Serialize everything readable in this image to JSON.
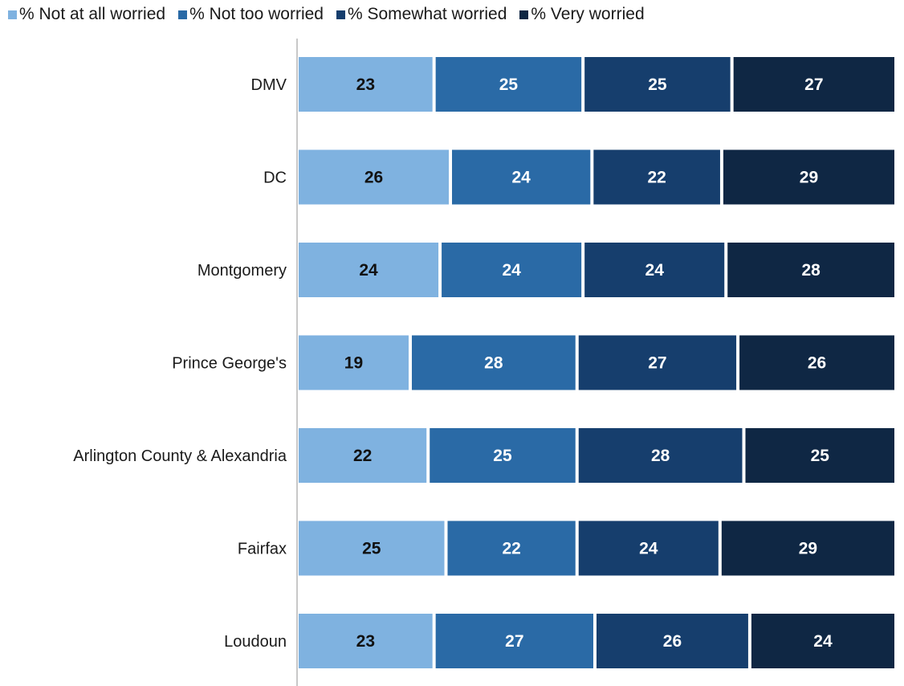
{
  "chart_data": {
    "type": "bar",
    "orientation": "horizontal",
    "stacked": true,
    "percent_stacked": true,
    "categories": [
      "DMV",
      "DC",
      "Montgomery",
      "Prince George's",
      "Arlington County & Alexandria",
      "Fairfax",
      "Loudoun"
    ],
    "series": [
      {
        "name": "% Not at all worried",
        "color": "#7fb2e0",
        "label_color": "#111111",
        "values": [
          23,
          26,
          24,
          19,
          22,
          25,
          23
        ]
      },
      {
        "name": "% Not too worried",
        "color": "#2a6aa6",
        "label_color": "#ffffff",
        "values": [
          25,
          24,
          24,
          28,
          25,
          22,
          27
        ]
      },
      {
        "name": "% Somewhat worried",
        "color": "#163e6d",
        "label_color": "#ffffff",
        "values": [
          25,
          22,
          24,
          27,
          28,
          24,
          26
        ]
      },
      {
        "name": "% Very worried",
        "color": "#0f2744",
        "label_color": "#ffffff",
        "values": [
          27,
          29,
          28,
          26,
          25,
          29,
          24
        ]
      }
    ],
    "legend_position": "top-left",
    "grid": false,
    "xlim": [
      0,
      100
    ]
  }
}
